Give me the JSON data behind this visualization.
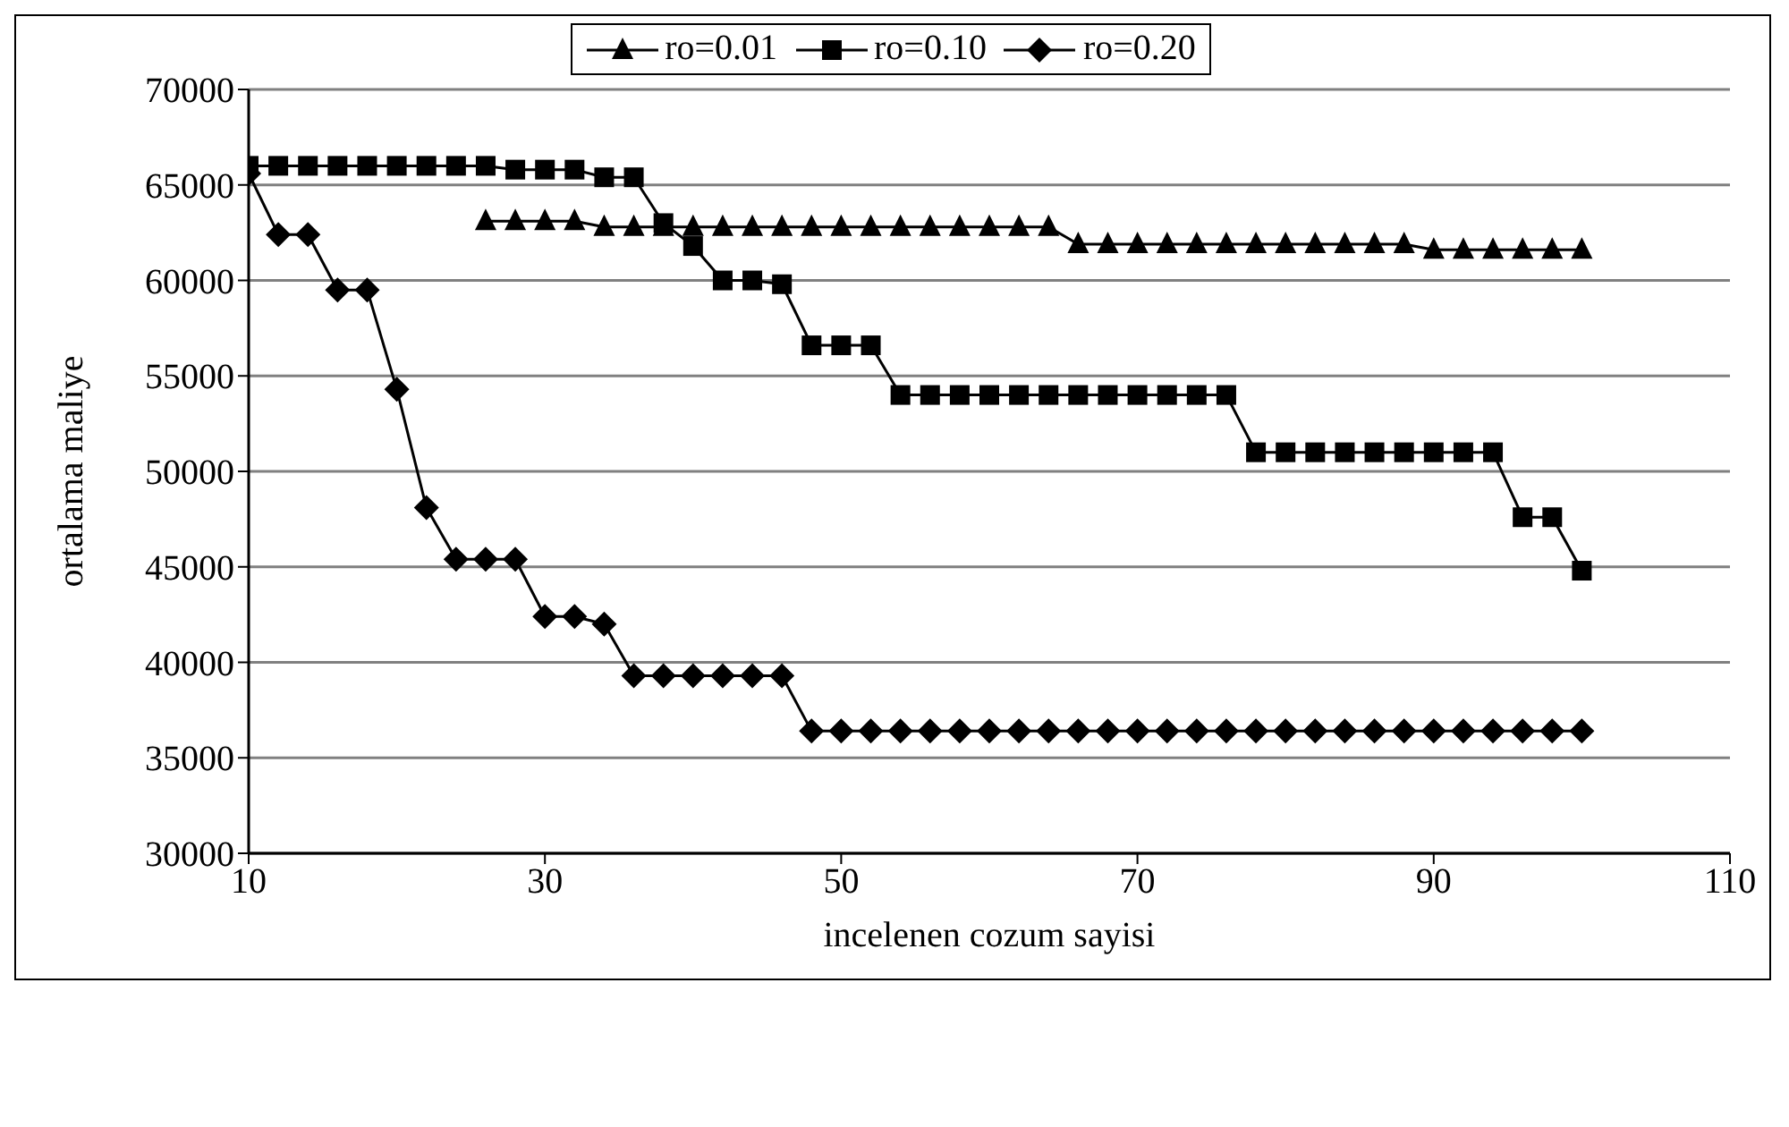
{
  "chart_data": {
    "type": "line",
    "xlabel": "incelenen cozum sayisi",
    "ylabel": "ortalama maliye",
    "x": [
      10,
      12,
      14,
      16,
      18,
      20,
      22,
      24,
      26,
      28,
      30,
      32,
      34,
      36,
      38,
      40,
      42,
      44,
      46,
      48,
      50,
      52,
      54,
      56,
      58,
      60,
      62,
      64,
      66,
      68,
      70,
      72,
      74,
      76,
      78,
      80,
      82,
      84,
      86,
      88,
      90,
      92,
      94,
      96,
      98,
      100
    ],
    "series": [
      {
        "name": "ro=0.01",
        "color": "#000000",
        "marker": "triangle",
        "values": [
          null,
          null,
          null,
          null,
          null,
          null,
          null,
          null,
          63100,
          63100,
          63100,
          63100,
          62800,
          62800,
          62800,
          62800,
          62800,
          62800,
          62800,
          62800,
          62800,
          62800,
          62800,
          62800,
          62800,
          62800,
          62800,
          62800,
          61900,
          61900,
          61900,
          61900,
          61900,
          61900,
          61900,
          61900,
          61900,
          61900,
          61900,
          61900,
          61600,
          61600,
          61600,
          61600,
          61600,
          61600
        ]
      },
      {
        "name": "ro=0.10",
        "color": "#000000",
        "marker": "square",
        "values": [
          66000,
          66000,
          66000,
          66000,
          66000,
          66000,
          66000,
          66000,
          66000,
          65800,
          65800,
          65800,
          65400,
          65400,
          63000,
          61800,
          60000,
          60000,
          59800,
          56600,
          56600,
          56600,
          54000,
          54000,
          54000,
          54000,
          54000,
          54000,
          54000,
          54000,
          54000,
          54000,
          54000,
          54000,
          51000,
          51000,
          51000,
          51000,
          51000,
          51000,
          51000,
          51000,
          51000,
          47600,
          47600,
          44800
        ]
      },
      {
        "name": "ro=0.20",
        "color": "#000000",
        "marker": "diamond",
        "values": [
          65600,
          62400,
          62400,
          59500,
          59500,
          54300,
          48100,
          45400,
          45400,
          45400,
          42400,
          42400,
          42000,
          39300,
          39300,
          39300,
          39300,
          39300,
          39300,
          36400,
          36400,
          36400,
          36400,
          36400,
          36400,
          36400,
          36400,
          36400,
          36400,
          36400,
          36400,
          36400,
          36400,
          36400,
          36400,
          36400,
          36400,
          36400,
          36400,
          36400,
          36400,
          36400,
          36400,
          36400,
          36400,
          36400
        ]
      }
    ],
    "xlim": [
      10,
      110
    ],
    "xticks": [
      10,
      30,
      50,
      70,
      90,
      110
    ],
    "ylim": [
      30000,
      70000
    ],
    "yticks": [
      30000,
      35000,
      40000,
      45000,
      50000,
      55000,
      60000,
      65000,
      70000
    ],
    "grid": "y",
    "legend": "top",
    "line_style": "solid"
  }
}
